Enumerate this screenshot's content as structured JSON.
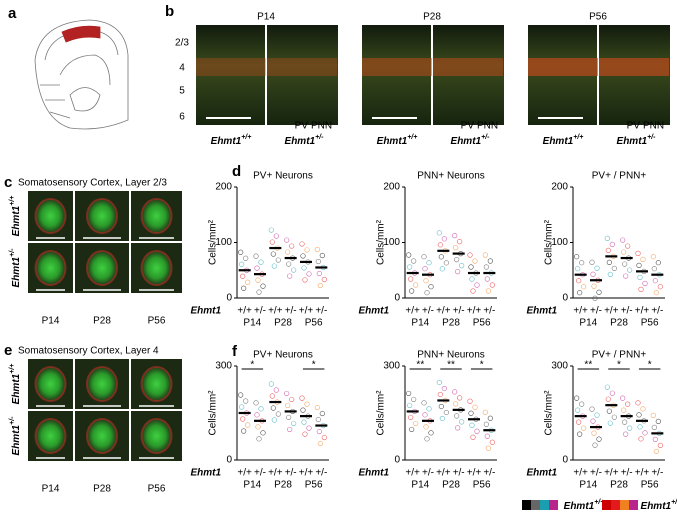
{
  "panels": {
    "a": "a",
    "b": "b",
    "c": "c",
    "d": "d",
    "e": "e",
    "f": "f"
  },
  "panel_b": {
    "ages": [
      "P14",
      "P28",
      "P56"
    ],
    "layers": [
      "2/3",
      "4",
      "5",
      "6"
    ],
    "wt": "Ehmt1",
    "wt_sup": "+/+",
    "het": "Ehmt1",
    "het_sup": "+/-",
    "pv": "PV",
    "pnn": "PNN"
  },
  "panel_c": {
    "title": "Somatosensory Cortex, Layer 2/3",
    "rows": [
      {
        "name": "Ehmt1",
        "sup": "+/+"
      },
      {
        "name": "Ehmt1",
        "sup": "+/-"
      }
    ],
    "ages": [
      "P14",
      "P28",
      "P56"
    ]
  },
  "panel_e": {
    "title": "Somatosensory Cortex, Layer 4",
    "rows": [
      {
        "name": "Ehmt1",
        "sup": "+/+"
      },
      {
        "name": "Ehmt1",
        "sup": "+/-"
      }
    ],
    "ages": [
      "P14",
      "P28",
      "P56"
    ]
  },
  "legend": {
    "wt": "Ehmt1",
    "wt_sup": "+/+",
    "het": "Ehmt1",
    "het_sup": "+/-"
  },
  "chart_data": [
    {
      "type": "scatter",
      "title": "PV+ Neurons",
      "ylabel": "Cells/mm²",
      "genotype": "Ehmt1",
      "categories": [
        "+/+",
        "+/-",
        "+/+",
        "+/-",
        "+/+",
        "+/-"
      ],
      "groups": [
        "P14",
        "P28",
        "P56"
      ],
      "values": [
        50,
        43,
        90,
        72,
        65,
        55
      ],
      "ylim": [
        0,
        200
      ],
      "yticks": [
        0,
        100,
        200
      ],
      "significance": [
        null,
        null,
        null
      ]
    },
    {
      "type": "scatter",
      "title": "PNN+ Neurons",
      "ylabel": "Cells/mm²",
      "genotype": "Ehmt1",
      "categories": [
        "+/+",
        "+/-",
        "+/+",
        "+/-",
        "+/+",
        "+/-"
      ],
      "groups": [
        "P14",
        "P28",
        "P56"
      ],
      "values": [
        45,
        42,
        85,
        80,
        45,
        45
      ],
      "ylim": [
        0,
        200
      ],
      "yticks": [
        0,
        100,
        200
      ],
      "significance": [
        null,
        null,
        null
      ]
    },
    {
      "type": "scatter",
      "title": "PV+ / PNN+",
      "ylabel": "Cells/mm²",
      "genotype": "Ehmt1",
      "categories": [
        "+/+",
        "+/-",
        "+/+",
        "+/-",
        "+/+",
        "+/-"
      ],
      "groups": [
        "P14",
        "P28",
        "P56"
      ],
      "values": [
        42,
        32,
        75,
        72,
        48,
        42
      ],
      "ylim": [
        0,
        200
      ],
      "yticks": [
        0,
        100,
        200
      ],
      "significance": [
        null,
        null,
        null
      ]
    },
    {
      "type": "scatter",
      "title": "PV+ Neurons",
      "ylabel": "Cells/mm²",
      "genotype": "Ehmt1",
      "categories": [
        "+/+",
        "+/-",
        "+/+",
        "+/-",
        "+/+",
        "+/-"
      ],
      "groups": [
        "P14",
        "P28",
        "P56"
      ],
      "values": [
        150,
        125,
        185,
        155,
        140,
        110
      ],
      "ylim": [
        0,
        300
      ],
      "yticks": [
        0,
        300
      ],
      "significance": [
        "*",
        null,
        "*"
      ]
    },
    {
      "type": "scatter",
      "title": "PNN+ Neurons",
      "ylabel": "Cells/mm²",
      "genotype": "Ehmt1",
      "categories": [
        "+/+",
        "+/-",
        "+/+",
        "+/-",
        "+/+",
        "+/-"
      ],
      "groups": [
        "P14",
        "P28",
        "P56"
      ],
      "values": [
        155,
        125,
        190,
        160,
        130,
        95
      ],
      "ylim": [
        0,
        300
      ],
      "yticks": [
        0,
        300
      ],
      "significance": [
        "**",
        "**",
        "*"
      ]
    },
    {
      "type": "scatter",
      "title": "PV+ / PNN+",
      "ylabel": "Cells/mm²",
      "genotype": "Ehmt1",
      "categories": [
        "+/+",
        "+/-",
        "+/+",
        "+/-",
        "+/+",
        "+/-"
      ],
      "groups": [
        "P14",
        "P28",
        "P56"
      ],
      "values": [
        140,
        105,
        175,
        140,
        125,
        85
      ],
      "ylim": [
        0,
        300
      ],
      "yticks": [
        0,
        300
      ],
      "significance": [
        "**",
        "*",
        "*"
      ]
    }
  ]
}
